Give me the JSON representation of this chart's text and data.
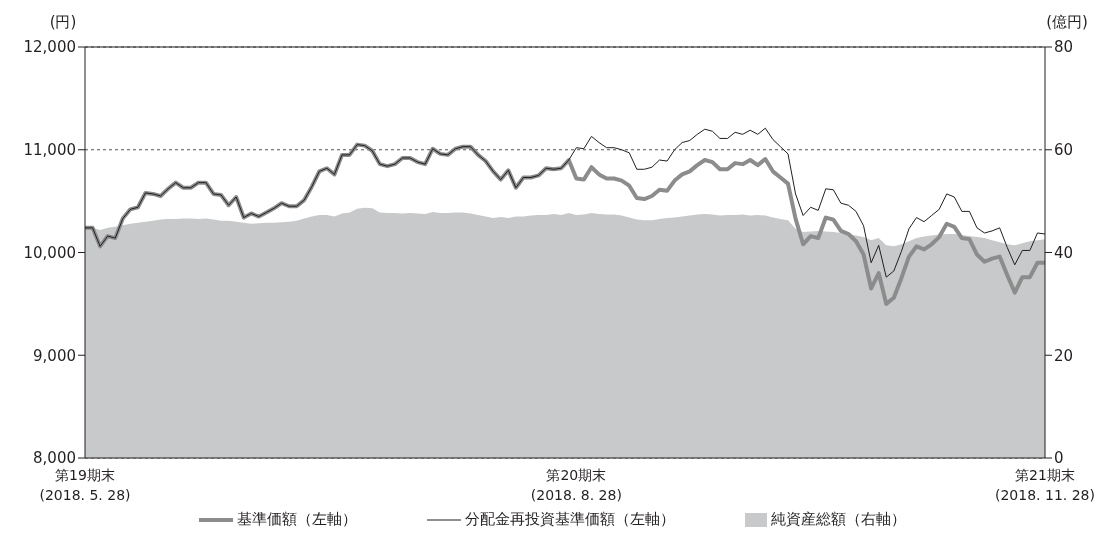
{
  "chart_data": {
    "type": "line",
    "ylabel": "(円)",
    "y2label": "(億円)",
    "categories": [
      "第19期末\n(2018. 5. 28)",
      null,
      null,
      null,
      null,
      null,
      null,
      null,
      null,
      null,
      null,
      null,
      null,
      null,
      null,
      null,
      null,
      null,
      null,
      null,
      null,
      null,
      null,
      null,
      null,
      null,
      null,
      null,
      null,
      null,
      null,
      null,
      null,
      null,
      null,
      null,
      null,
      null,
      null,
      null,
      null,
      null,
      null,
      null,
      null,
      null,
      null,
      null,
      null,
      null,
      null,
      null,
      null,
      null,
      null,
      null,
      null,
      null,
      null,
      null,
      null,
      null,
      null,
      null,
      null,
      "第20期末\n(2018. 8. 28)",
      null,
      null,
      null,
      null,
      null,
      null,
      null,
      null,
      null,
      null,
      null,
      null,
      null,
      null,
      null,
      null,
      null,
      null,
      null,
      null,
      null,
      null,
      null,
      null,
      null,
      null,
      null,
      null,
      null,
      null,
      null,
      null,
      null,
      null,
      null,
      null,
      null,
      null,
      null,
      null,
      null,
      null,
      null,
      null,
      null,
      null,
      null,
      null,
      null,
      null,
      null,
      null,
      null,
      null,
      null,
      null,
      null,
      null,
      null,
      null,
      null,
      "第21期末\n(2018. 11. 28)"
    ],
    "series": [
      {
        "name": "基準価額（左軸）",
        "color": "#8c8c8c",
        "values": [
          10240,
          10240,
          10060,
          10160,
          10140,
          10330,
          10420,
          10440,
          10580,
          10570,
          10550,
          10620,
          10680,
          10630,
          10630,
          10680,
          10680,
          10570,
          10560,
          10460,
          10540,
          10340,
          10380,
          10350,
          10390,
          10430,
          10480,
          10450,
          10450,
          10510,
          10640,
          10790,
          10820,
          10760,
          10950,
          10950,
          11050,
          11040,
          10990,
          10860,
          10840,
          10860,
          10920,
          10920,
          10880,
          10860,
          11010,
          10960,
          10950,
          11010,
          11030,
          11030,
          10950,
          10890,
          10790,
          10710,
          10800,
          10630,
          10730,
          10730,
          10750,
          10820,
          10810,
          10820,
          10900,
          10720,
          10710,
          10830,
          10760,
          10720,
          10720,
          10700,
          10650,
          10530,
          10520,
          10550,
          10610,
          10600,
          10700,
          10760,
          10790,
          10850,
          10900,
          10880,
          10810,
          10810,
          10870,
          10860,
          10900,
          10850,
          10910,
          10790,
          10730,
          10670,
          10330,
          10080,
          10160,
          10140,
          10340,
          10320,
          10210,
          10180,
          10110,
          9980,
          9650,
          9800,
          9500,
          9560,
          9750,
          9960,
          10060,
          10030,
          10080,
          10150,
          10280,
          10250,
          10140,
          10130,
          9980,
          9910,
          9940,
          9960,
          9780,
          9610,
          9760,
          9760,
          9900,
          9900
        ]
      },
      {
        "name": "分配金再投資基準価額（左軸）",
        "color": "#231f20",
        "values": [
          10240,
          10240,
          10060,
          10160,
          10140,
          10330,
          10420,
          10440,
          10580,
          10570,
          10550,
          10620,
          10680,
          10630,
          10630,
          10680,
          10680,
          10570,
          10560,
          10460,
          10540,
          10340,
          10380,
          10350,
          10390,
          10430,
          10480,
          10450,
          10450,
          10510,
          10640,
          10790,
          10820,
          10760,
          10950,
          10950,
          11050,
          11040,
          10990,
          10860,
          10840,
          10860,
          10920,
          10920,
          10880,
          10860,
          11010,
          10960,
          10950,
          11010,
          11030,
          11030,
          10950,
          10890,
          10790,
          10710,
          10800,
          10630,
          10730,
          10730,
          10750,
          10820,
          10810,
          10820,
          10900,
          11020,
          11010,
          11130,
          11070,
          11020,
          11020,
          11000,
          10970,
          10810,
          10810,
          10830,
          10900,
          10890,
          11000,
          11070,
          11090,
          11150,
          11200,
          11180,
          11110,
          11110,
          11170,
          11150,
          11190,
          11150,
          11210,
          11100,
          11030,
          10960,
          10570,
          10360,
          10440,
          10410,
          10620,
          10610,
          10480,
          10460,
          10400,
          10260,
          9900,
          10070,
          9760,
          9820,
          10010,
          10230,
          10340,
          10300,
          10360,
          10420,
          10570,
          10540,
          10400,
          10400,
          10240,
          10190,
          10210,
          10240,
          10050,
          9880,
          10020,
          10020,
          10190,
          10180
        ]
      },
      {
        "name": "純資産総額（右軸）",
        "type": "area",
        "axis": "y2",
        "color": "#c8c9ca",
        "values": [
          44.8,
          44.8,
          44.4,
          44.8,
          45.0,
          45.3,
          45.6,
          45.8,
          46.0,
          46.2,
          46.4,
          46.5,
          46.5,
          46.6,
          46.6,
          46.5,
          46.6,
          46.4,
          46.2,
          46.2,
          46.0,
          45.8,
          45.6,
          45.7,
          45.8,
          45.8,
          45.9,
          46.0,
          46.2,
          46.6,
          47.0,
          47.3,
          47.3,
          47.0,
          47.6,
          47.8,
          48.5,
          48.7,
          48.6,
          47.8,
          47.7,
          47.7,
          47.6,
          47.7,
          47.6,
          47.5,
          47.9,
          47.7,
          47.7,
          47.8,
          47.8,
          47.6,
          47.3,
          47.0,
          46.7,
          46.9,
          46.7,
          47.0,
          47.0,
          47.2,
          47.3,
          47.3,
          47.5,
          47.3,
          47.7,
          47.3,
          47.4,
          47.7,
          47.5,
          47.4,
          47.4,
          47.2,
          46.8,
          46.4,
          46.3,
          46.3,
          46.5,
          46.7,
          46.8,
          47.0,
          47.2,
          47.4,
          47.5,
          47.4,
          47.2,
          47.3,
          47.3,
          47.4,
          47.2,
          47.3,
          47.2,
          46.8,
          46.5,
          46.3,
          44.6,
          44.0,
          44.1,
          44.2,
          44.1,
          44.0,
          43.8,
          43.6,
          43.3,
          43.0,
          42.4,
          42.8,
          41.4,
          41.2,
          41.6,
          42.2,
          42.8,
          43.1,
          43.3,
          43.5,
          43.6,
          43.6,
          43.4,
          43.2,
          43.0,
          42.8,
          42.4,
          42.0,
          41.6,
          41.4,
          41.8,
          42.2,
          42.4,
          42.6
        ]
      }
    ],
    "ylim": [
      8000,
      12000
    ],
    "yticks": [
      {
        "value": 8000,
        "label": "8,000"
      },
      {
        "value": 9000,
        "label": "9,000"
      },
      {
        "value": 10000,
        "label": "10,000"
      },
      {
        "value": 11000,
        "label": "11,000"
      },
      {
        "value": 12000,
        "label": "12,000"
      }
    ],
    "y2lim": [
      0,
      80
    ],
    "y2ticks": [
      0,
      20,
      40,
      60,
      80
    ],
    "grid": "y",
    "legend": "bottom",
    "marker": "none",
    "line_style": "solid"
  }
}
